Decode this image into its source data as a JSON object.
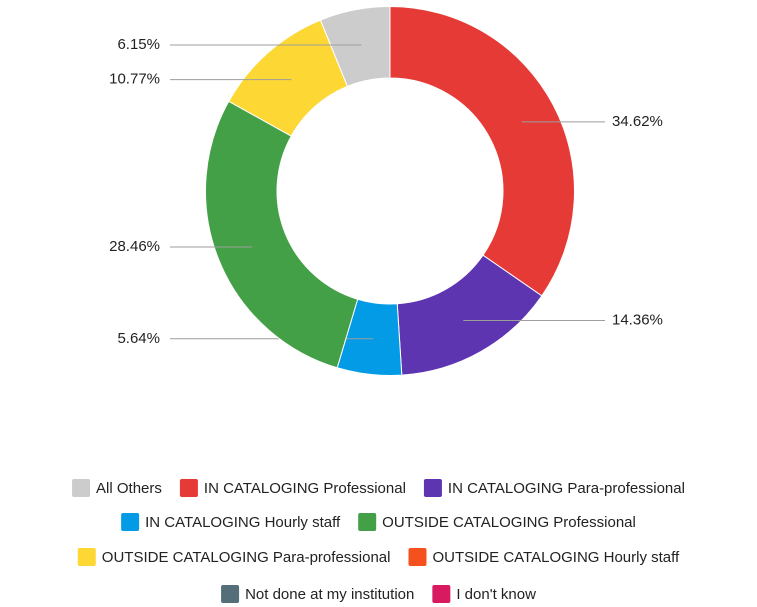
{
  "chart_data": {
    "type": "donut",
    "categories": [
      "All Others",
      "IN CATALOGING Professional",
      "IN CATALOGING Para-professional",
      "IN CATALOGING Hourly staff",
      "OUTSIDE CATALOGING Professional",
      "OUTSIDE CATALOGING Para-professional",
      "OUTSIDE CATALOGING Hourly staff",
      "Not done at my institution",
      "I don't know"
    ],
    "values": [
      6.15,
      34.62,
      14.36,
      5.64,
      28.46,
      10.77,
      null,
      null,
      null
    ],
    "value_labels": [
      "6.15%",
      "34.62%",
      "14.36%",
      "5.64%",
      "28.46%",
      "10.77%",
      null,
      null,
      null
    ],
    "colors": [
      "#cccccc",
      "#e53a35",
      "#5e35b1",
      "#039be5",
      "#43a047",
      "#fdd835",
      "#f4511e",
      "#546e7a",
      "#d81b60"
    ],
    "legend": "bottom"
  }
}
